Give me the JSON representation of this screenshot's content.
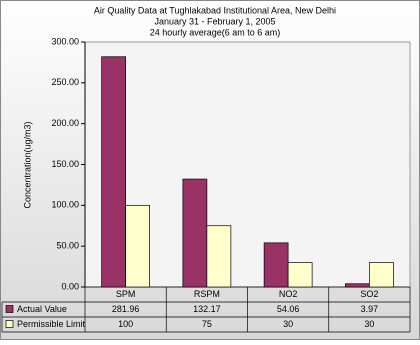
{
  "chart_data": {
    "type": "bar",
    "title": "Air Quality Data at Tughlakabad Institutional Area, New Delhi",
    "subtitles": [
      "January 31  - February 1, 2005",
      "24 hourly average(6 am to 6 am)"
    ],
    "y_label": "Concentration(ug/m3)",
    "categories": [
      "SPM",
      "RSPM",
      "NO2",
      "SO2"
    ],
    "series": [
      {
        "name": "Actual Value",
        "color": "#993366",
        "values": [
          281.96,
          132.17,
          54.06,
          3.97
        ]
      },
      {
        "name": "Permissible Limit",
        "color": "#ffffcc",
        "values": [
          100,
          75,
          30,
          30
        ]
      }
    ],
    "ylim": [
      0,
      300
    ],
    "yticks": [
      {
        "value": 0,
        "label": "0.00"
      },
      {
        "value": 50,
        "label": "50.00"
      },
      {
        "value": 100,
        "label": "100.00"
      },
      {
        "value": 150,
        "label": "150.00"
      },
      {
        "value": 200,
        "label": "200.00"
      },
      {
        "value": 250,
        "label": "250.00"
      },
      {
        "value": 300,
        "label": "300.00"
      }
    ],
    "grid": false
  }
}
